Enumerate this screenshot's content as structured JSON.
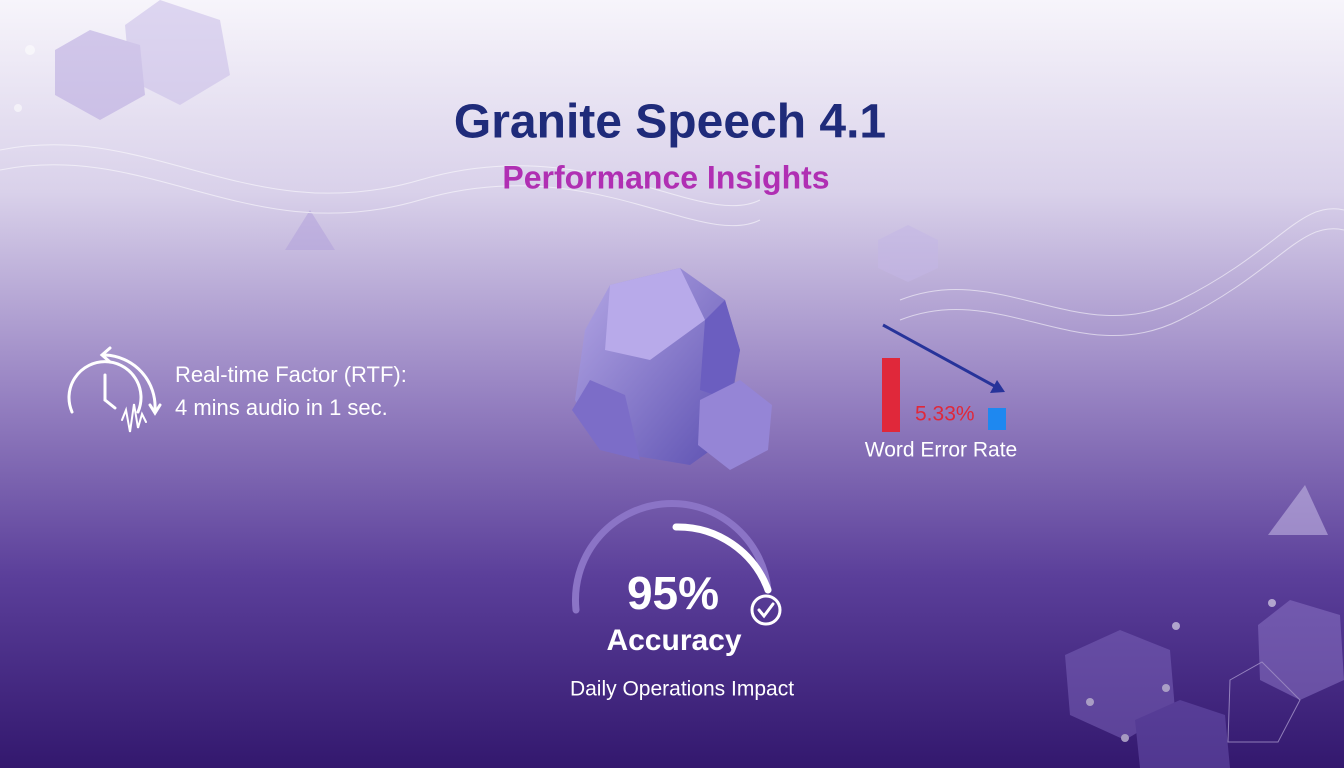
{
  "header": {
    "title": "Granite Speech 4.1",
    "subtitle": "Performance Insights"
  },
  "rtf": {
    "line1": "Real-time Factor (RTF):",
    "line2": "4 mins audio in 1 sec."
  },
  "wer": {
    "value_label": "5.33%",
    "label": "Word Error Rate"
  },
  "accuracy": {
    "value_label": "95%",
    "label": "Accuracy",
    "caption": "Daily Operations Impact"
  }
}
